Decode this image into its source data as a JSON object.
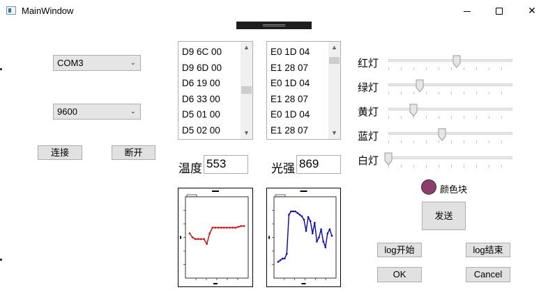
{
  "window": {
    "title": "MainWindow"
  },
  "serial": {
    "port": "COM3",
    "baud": "9600",
    "connect_label": "连接",
    "disconnect_label": "断开"
  },
  "lists": {
    "left": [
      "D9 6C 00",
      "D9 6D 00",
      "D6 19 00",
      "D6 33 00",
      "D5 01 00",
      "D5 02 00"
    ],
    "right": [
      "E0 1D 04",
      "E1 28 07",
      "E0 1D 04",
      "E1 28 07",
      "E0 1D 04",
      "E1 28 07"
    ]
  },
  "readings": {
    "temp_label": "温度",
    "temp_value": "553",
    "light_label": "光强",
    "light_value": "869"
  },
  "lights": [
    {
      "label": "红灯",
      "level": 0.55
    },
    {
      "label": "绿灯",
      "level": 0.25
    },
    {
      "label": "黄灯",
      "level": 0.2
    },
    {
      "label": "蓝灯",
      "level": 0.43
    },
    {
      "label": "白灯",
      "level": 0.0
    }
  ],
  "color_block": {
    "label": "颜色块",
    "color": "#8c3e6b"
  },
  "buttons": {
    "send": "发送",
    "log_start": "log开始",
    "log_end": "log结束",
    "ok": "OK",
    "cancel": "Cancel"
  },
  "chart_data": [
    {
      "type": "line",
      "color": "#e00000",
      "x": [
        0,
        1,
        2,
        3,
        4,
        5,
        6,
        7,
        8,
        9,
        10,
        11,
        12,
        13,
        14,
        15,
        16,
        17,
        18,
        19
      ],
      "values": [
        0.55,
        0.5,
        0.48,
        0.48,
        0.48,
        0.48,
        0.42,
        0.55,
        0.62,
        0.62,
        0.62,
        0.62,
        0.62,
        0.62,
        0.62,
        0.62,
        0.62,
        0.63,
        0.64,
        0.64
      ]
    },
    {
      "type": "line",
      "color": "#0000d0",
      "x": [
        0,
        1,
        2,
        3,
        4,
        5,
        6,
        7,
        8,
        9,
        10,
        11,
        12,
        13,
        14,
        15,
        16,
        17,
        18,
        19,
        20,
        21,
        22,
        23,
        24,
        25
      ],
      "values": [
        0.2,
        0.22,
        0.24,
        0.24,
        0.3,
        0.78,
        0.82,
        0.82,
        0.82,
        0.8,
        0.78,
        0.76,
        0.72,
        0.58,
        0.75,
        0.7,
        0.55,
        0.68,
        0.45,
        0.5,
        0.6,
        0.45,
        0.38,
        0.55,
        0.6,
        0.52
      ]
    }
  ]
}
